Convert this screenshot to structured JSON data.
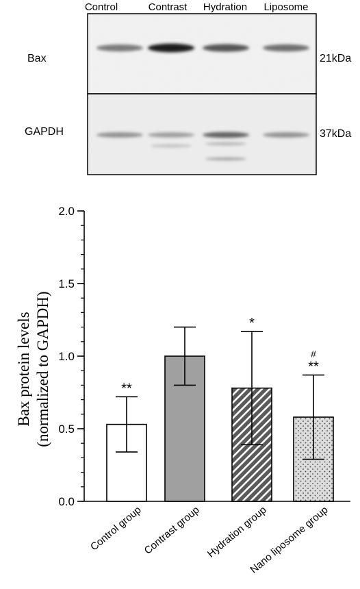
{
  "blot": {
    "lanes": [
      "Control",
      "Contrast",
      "Hydration",
      "Liposome"
    ],
    "rows": [
      {
        "label": "Bax",
        "size": "21kDa",
        "intensity": [
          0.55,
          0.95,
          0.7,
          0.6
        ]
      },
      {
        "label": "GAPDH",
        "size": "37kDa",
        "intensity": [
          0.45,
          0.4,
          0.65,
          0.45
        ]
      }
    ]
  },
  "chart_data": {
    "type": "bar",
    "categories": [
      "Control group",
      "Contrast group",
      "Hydration group",
      "Nano liposome group"
    ],
    "values": [
      0.53,
      1.0,
      0.78,
      0.58
    ],
    "errors": [
      0.19,
      0.2,
      0.39,
      0.29
    ],
    "fills": [
      "none",
      "solid-gray",
      "diagonal-hatch",
      "dots"
    ],
    "significance": [
      "**",
      "",
      "*",
      "**"
    ],
    "significance_secondary": [
      "",
      "",
      "",
      "#"
    ],
    "ylabel_line1": "Bax protein levels",
    "ylabel_line2": "(normalized to GAPDH)",
    "ylim": [
      0,
      2.0
    ],
    "yticks": [
      0.0,
      0.5,
      1.0,
      1.5,
      2.0
    ],
    "yticklabels": [
      "0.0",
      "0.5",
      "1.0",
      "1.5",
      "2.0"
    ],
    "grid": false
  }
}
